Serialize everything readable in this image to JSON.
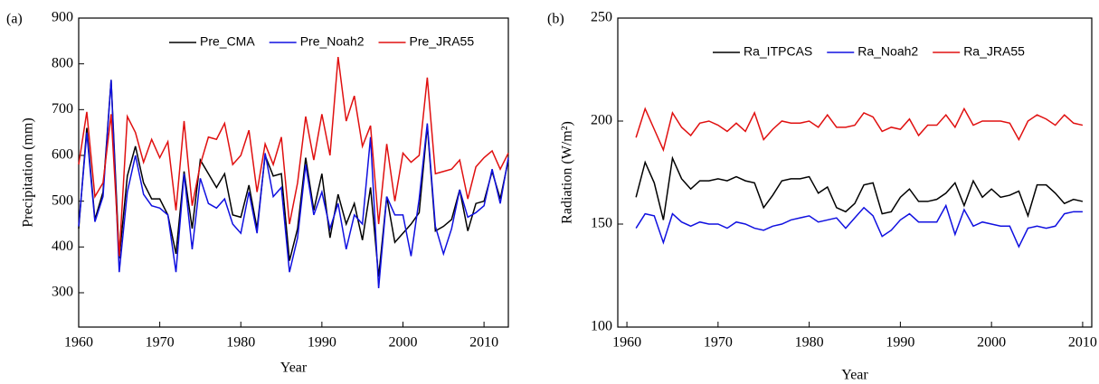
{
  "chart_data": [
    {
      "type": "line",
      "panel_label": "(a)",
      "x_label": "Year",
      "y_label": "Precipitation (mm)",
      "xlim": [
        1960,
        2013
      ],
      "xticks": [
        1960,
        1970,
        1980,
        1990,
        2000,
        2010
      ],
      "ylim": [
        225,
        900
      ],
      "yticks": [
        300,
        400,
        500,
        600,
        700,
        800,
        900
      ],
      "x": [
        1960,
        1961,
        1962,
        1963,
        1964,
        1965,
        1966,
        1967,
        1968,
        1969,
        1970,
        1971,
        1972,
        1973,
        1974,
        1975,
        1976,
        1977,
        1978,
        1979,
        1980,
        1981,
        1982,
        1983,
        1984,
        1985,
        1986,
        1987,
        1988,
        1989,
        1990,
        1991,
        1992,
        1993,
        1994,
        1995,
        1996,
        1997,
        1998,
        1999,
        2000,
        2001,
        2002,
        2003,
        2004,
        2005,
        2006,
        2007,
        2008,
        2009,
        2010,
        2011,
        2012,
        2013
      ],
      "series": [
        {
          "name": "Pre_CMA",
          "color": "#000000",
          "values": [
            440,
            660,
            460,
            520,
            765,
            375,
            555,
            620,
            540,
            505,
            505,
            470,
            385,
            565,
            440,
            590,
            560,
            530,
            560,
            470,
            465,
            535,
            440,
            600,
            555,
            560,
            370,
            440,
            595,
            480,
            560,
            420,
            515,
            450,
            495,
            415,
            530,
            335,
            510,
            410,
            430,
            450,
            475,
            665,
            435,
            445,
            460,
            525,
            435,
            495,
            500,
            565,
            505,
            590
          ]
        },
        {
          "name": "Pre_Noah2",
          "color": "#1010e0",
          "values": [
            445,
            650,
            455,
            510,
            765,
            345,
            520,
            600,
            515,
            490,
            485,
            470,
            345,
            560,
            395,
            550,
            495,
            485,
            505,
            450,
            430,
            520,
            430,
            605,
            510,
            530,
            345,
            420,
            580,
            470,
            520,
            440,
            495,
            395,
            470,
            450,
            640,
            310,
            510,
            470,
            470,
            380,
            505,
            670,
            445,
            385,
            440,
            525,
            465,
            475,
            490,
            570,
            495,
            595
          ]
        },
        {
          "name": "Pre_JRA55",
          "color": "#e01010",
          "values": [
            580,
            695,
            510,
            540,
            690,
            380,
            685,
            650,
            585,
            635,
            595,
            630,
            480,
            675,
            490,
            580,
            640,
            635,
            670,
            580,
            600,
            655,
            520,
            625,
            580,
            640,
            450,
            540,
            685,
            590,
            690,
            600,
            815,
            675,
            730,
            620,
            665,
            450,
            625,
            500,
            605,
            585,
            600,
            770,
            560,
            565,
            570,
            590,
            505,
            575,
            595,
            610,
            570,
            605
          ]
        }
      ]
    },
    {
      "type": "line",
      "panel_label": "(b)",
      "x_label": "Year",
      "y_label": "Radiation (W/m²)",
      "xlim": [
        1959,
        2011
      ],
      "xticks": [
        1960,
        1970,
        1980,
        1990,
        2000,
        2010
      ],
      "ylim": [
        100,
        250
      ],
      "yticks": [
        100,
        150,
        200,
        250
      ],
      "x": [
        1961,
        1962,
        1963,
        1964,
        1965,
        1966,
        1967,
        1968,
        1969,
        1970,
        1971,
        1972,
        1973,
        1974,
        1975,
        1976,
        1977,
        1978,
        1979,
        1980,
        1981,
        1982,
        1983,
        1984,
        1985,
        1986,
        1987,
        1988,
        1989,
        1990,
        1991,
        1992,
        1993,
        1994,
        1995,
        1996,
        1997,
        1998,
        1999,
        2000,
        2001,
        2002,
        2003,
        2004,
        2005,
        2006,
        2007,
        2008,
        2009,
        2010
      ],
      "series": [
        {
          "name": "Ra_ITPCAS",
          "color": "#000000",
          "values": [
            163,
            180,
            170,
            152,
            182,
            172,
            167,
            171,
            171,
            172,
            171,
            173,
            171,
            170,
            158,
            164,
            171,
            172,
            172,
            173,
            165,
            168,
            158,
            156,
            160,
            169,
            170,
            155,
            156,
            163,
            167,
            161,
            161,
            162,
            165,
            170,
            159,
            171,
            163,
            167,
            163,
            164,
            166,
            154,
            169,
            169,
            165,
            160,
            162,
            161
          ]
        },
        {
          "name": "Ra_Noah2",
          "color": "#1010e0",
          "values": [
            148,
            155,
            154,
            141,
            155,
            151,
            149,
            151,
            150,
            150,
            148,
            151,
            150,
            148,
            147,
            149,
            150,
            152,
            153,
            154,
            151,
            152,
            153,
            148,
            153,
            158,
            154,
            144,
            147,
            152,
            155,
            151,
            151,
            151,
            159,
            145,
            157,
            149,
            151,
            150,
            149,
            149,
            139,
            148,
            149,
            148,
            149,
            155,
            156,
            156
          ]
        },
        {
          "name": "Ra_JRA55",
          "color": "#e01010",
          "values": [
            192,
            206,
            196,
            186,
            204,
            197,
            193,
            199,
            200,
            198,
            195,
            199,
            195,
            204,
            191,
            196,
            200,
            199,
            199,
            200,
            197,
            203,
            197,
            197,
            198,
            204,
            202,
            195,
            197,
            196,
            201,
            193,
            198,
            198,
            203,
            197,
            206,
            198,
            200,
            200,
            200,
            199,
            191,
            200,
            203,
            201,
            198,
            203,
            199,
            198
          ]
        }
      ]
    }
  ]
}
